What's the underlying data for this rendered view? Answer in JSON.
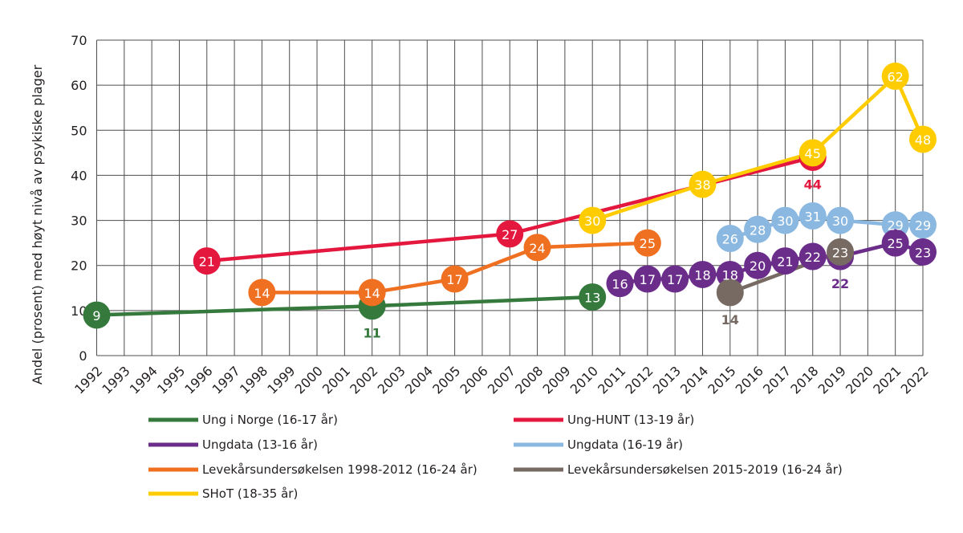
{
  "chart_data": {
    "type": "line",
    "ylabel": "Andel (prosent) med høyt nivå av psykiske plager",
    "ylim": [
      0,
      70
    ],
    "yticks": [
      0,
      10,
      20,
      30,
      40,
      50,
      60,
      70
    ],
    "xlim": [
      1992,
      2022
    ],
    "xticks": [
      1992,
      1993,
      1994,
      1995,
      1996,
      1997,
      1998,
      1999,
      2000,
      2001,
      2002,
      2003,
      2004,
      2005,
      2006,
      2007,
      2008,
      2009,
      2010,
      2011,
      2012,
      2013,
      2014,
      2015,
      2016,
      2017,
      2018,
      2019,
      2020,
      2021,
      2022
    ],
    "grid": true,
    "legend_position": "bottom",
    "series": [
      {
        "name": "Ung i Norge (16-17 år)",
        "color": "#357a3c",
        "x": [
          1992,
          2002,
          2010
        ],
        "y": [
          9,
          11,
          13
        ]
      },
      {
        "name": "Ung-HUNT (13-19 år)",
        "color": "#e4173e",
        "x": [
          1996,
          2007,
          2018
        ],
        "y": [
          21,
          27,
          44
        ]
      },
      {
        "name": "Ungdata (13-16 år)",
        "color": "#6b2d8a",
        "x": [
          2011,
          2012,
          2013,
          2014,
          2015,
          2016,
          2017,
          2018,
          2019,
          2021,
          2022
        ],
        "y": [
          16,
          17,
          17,
          18,
          18,
          20,
          21,
          22,
          22,
          25,
          23
        ]
      },
      {
        "name": "Ungdata (16-19 år)",
        "color": "#8ab8e0",
        "x": [
          2015,
          2016,
          2017,
          2018,
          2019,
          2021,
          2022
        ],
        "y": [
          26,
          28,
          30,
          31,
          30,
          29,
          29
        ]
      },
      {
        "name": "Levekårsundersøkelsen 1998-2012 (16-24 år)",
        "color": "#f07022",
        "x": [
          1998,
          2002,
          2005,
          2008,
          2012
        ],
        "y": [
          14,
          14,
          17,
          24,
          25
        ]
      },
      {
        "name": "Levekårsundersøkelsen 2015-2019 (16-24 år)",
        "color": "#766a62",
        "x": [
          2015,
          2019
        ],
        "y": [
          14,
          23
        ]
      },
      {
        "name": "SHoT (18-35 år)",
        "color": "#ffcc00",
        "x": [
          2010,
          2014,
          2018,
          2021,
          2022
        ],
        "y": [
          30,
          38,
          45,
          62,
          48
        ]
      }
    ]
  }
}
